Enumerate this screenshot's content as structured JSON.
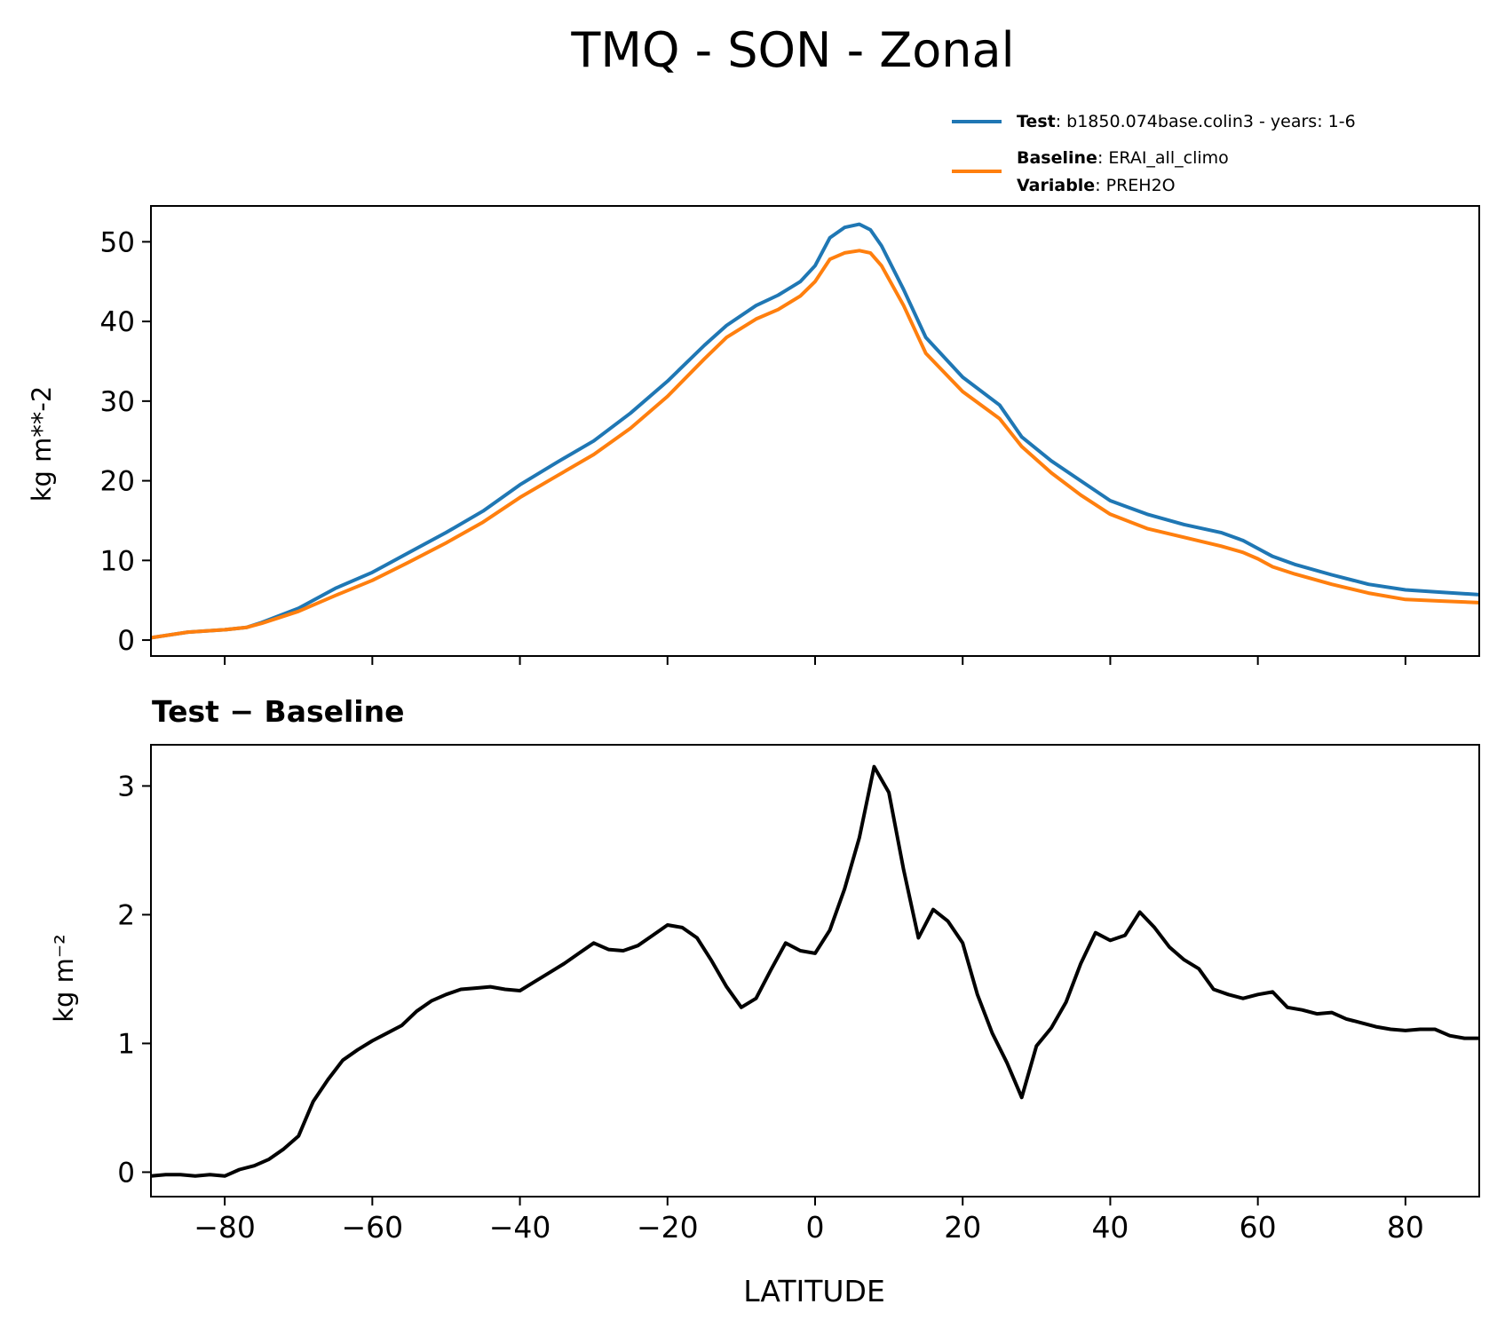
{
  "figure": {
    "title": "TMQ - SON - Zonal",
    "xlabel": "LATITUDE"
  },
  "legend": {
    "entries": [
      {
        "series": "Test",
        "bold": "Test",
        "text": ": b1850.074base.colin3 - years: 1-6"
      },
      {
        "series": "Baseline",
        "bold": "Baseline",
        "text": ": ERAI_all_climo"
      },
      {
        "series": "Baseline",
        "bold": "Variable",
        "text": ": PREH2O"
      }
    ]
  },
  "chart_data": [
    {
      "type": "line",
      "title": "TMQ - SON - Zonal",
      "xlabel": "",
      "ylabel": "kg m**-2",
      "xlim": [
        -90,
        90
      ],
      "ylim": [
        -2,
        54.5
      ],
      "xticks": [
        -80,
        -60,
        -40,
        -20,
        0,
        20,
        40,
        60,
        80
      ],
      "yticks": [
        0,
        10,
        20,
        30,
        40,
        50
      ],
      "ytick_labels": [
        "0",
        "10",
        "20",
        "30",
        "40",
        "50"
      ],
      "legend_position": "top-right, above axes",
      "x": [
        -90,
        -85,
        -80,
        -77,
        -75,
        -70,
        -65,
        -60,
        -55,
        -50,
        -45,
        -40,
        -35,
        -30,
        -25,
        -20,
        -15,
        -12,
        -8,
        -5,
        -2,
        0,
        2,
        4,
        6,
        7.5,
        9,
        12,
        15,
        20,
        25,
        28,
        32,
        36,
        40,
        45,
        50,
        55,
        58,
        60,
        62,
        65,
        70,
        75,
        80,
        85,
        90
      ],
      "series": [
        {
          "name": "Test",
          "color": "#1f77b4",
          "values": [
            0.3,
            1,
            1.3,
            1.6,
            2.2,
            4,
            6.5,
            8.5,
            11,
            13.5,
            16.2,
            19.5,
            22.3,
            25,
            28.5,
            32.5,
            37,
            39.5,
            42,
            43.3,
            45,
            47,
            50.5,
            51.8,
            52.2,
            51.5,
            49.5,
            44,
            38,
            33,
            29.5,
            25.5,
            22.5,
            20,
            17.5,
            15.8,
            14.5,
            13.5,
            12.5,
            11.5,
            10.5,
            9.5,
            8.2,
            7,
            6.3,
            6,
            5.7
          ]
        },
        {
          "name": "Baseline",
          "color": "#ff7f0e",
          "values": [
            0.3,
            1,
            1.3,
            1.6,
            2.1,
            3.6,
            5.6,
            7.5,
            9.8,
            12.2,
            14.8,
            17.9,
            20.6,
            23.3,
            26.6,
            30.6,
            35.3,
            38,
            40.3,
            41.5,
            43.2,
            45,
            47.8,
            48.6,
            48.9,
            48.6,
            47,
            42,
            36,
            31.2,
            27.8,
            24.3,
            21,
            18.2,
            15.8,
            14,
            12.9,
            11.8,
            11,
            10.2,
            9.2,
            8.3,
            7,
            5.9,
            5.1,
            4.9,
            4.7
          ]
        }
      ]
    },
    {
      "type": "line",
      "title": "Test − Baseline",
      "xlabel": "LATITUDE",
      "ylabel": "kg m⁻²",
      "xlim": [
        -90,
        90
      ],
      "ylim": [
        -0.19,
        3.32
      ],
      "xticks": [
        -80,
        -60,
        -40,
        -20,
        0,
        20,
        40,
        60,
        80
      ],
      "xtick_labels": [
        "−80",
        "−60",
        "−40",
        "−20",
        "0",
        "20",
        "40",
        "60",
        "80"
      ],
      "yticks": [
        0,
        1,
        2,
        3
      ],
      "ytick_labels": [
        "0",
        "1",
        "2",
        "3"
      ],
      "x": [
        -90,
        -88,
        -86,
        -84,
        -82,
        -80,
        -78,
        -76,
        -74,
        -72,
        -70,
        -68,
        -66,
        -64,
        -62,
        -60,
        -58,
        -56,
        -54,
        -52,
        -50,
        -48,
        -46,
        -44,
        -42,
        -40,
        -38,
        -36,
        -34,
        -32,
        -30,
        -28,
        -26,
        -24,
        -22,
        -20,
        -18,
        -16,
        -14,
        -12,
        -10,
        -8,
        -6,
        -4,
        -2,
        0,
        2,
        4,
        6,
        8,
        10,
        12,
        14,
        16,
        18,
        20,
        22,
        24,
        26,
        28,
        30,
        32,
        34,
        36,
        38,
        40,
        42,
        44,
        46,
        48,
        50,
        52,
        54,
        56,
        58,
        60,
        62,
        64,
        66,
        68,
        70,
        72,
        74,
        76,
        78,
        80,
        82,
        84,
        86,
        88,
        90
      ],
      "series": [
        {
          "name": "Test − Baseline",
          "color": "#000000",
          "values": [
            -0.03,
            -0.02,
            -0.02,
            -0.03,
            -0.02,
            -0.03,
            0.02,
            0.05,
            0.1,
            0.18,
            0.28,
            0.55,
            0.72,
            0.87,
            0.95,
            1.02,
            1.08,
            1.14,
            1.25,
            1.33,
            1.38,
            1.42,
            1.43,
            1.44,
            1.42,
            1.41,
            1.48,
            1.55,
            1.62,
            1.7,
            1.78,
            1.73,
            1.72,
            1.76,
            1.84,
            1.92,
            1.9,
            1.82,
            1.64,
            1.44,
            1.28,
            1.35,
            1.57,
            1.78,
            1.72,
            1.7,
            1.88,
            2.2,
            2.6,
            3.15,
            2.95,
            2.35,
            1.82,
            2.04,
            1.95,
            1.78,
            1.38,
            1.08,
            0.85,
            0.58,
            0.98,
            1.12,
            1.32,
            1.62,
            1.86,
            1.8,
            1.84,
            2.02,
            1.9,
            1.75,
            1.65,
            1.58,
            1.42,
            1.38,
            1.35,
            1.38,
            1.4,
            1.28,
            1.26,
            1.23,
            1.24,
            1.19,
            1.16,
            1.13,
            1.11,
            1.1,
            1.11,
            1.11,
            1.06,
            1.04,
            1.04
          ]
        }
      ]
    }
  ]
}
